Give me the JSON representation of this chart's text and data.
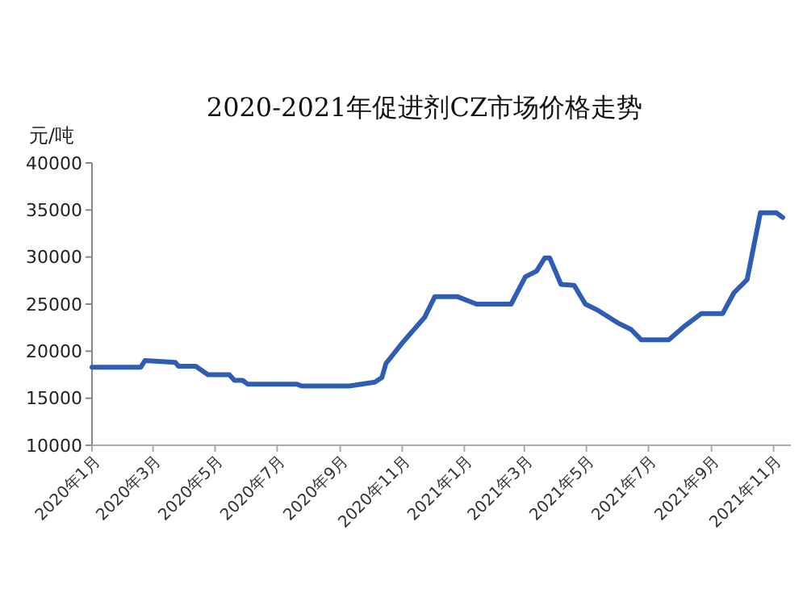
{
  "chart_data": {
    "type": "line",
    "title": "2020-2021年促进剂CZ市场价格走势",
    "ylabel": "元/吨",
    "x": [
      "2020-01-01",
      "2020-02-18",
      "2020-02-22",
      "2020-03-23",
      "2020-03-26",
      "2020-04-12",
      "2020-04-24",
      "2020-05-15",
      "2020-05-20",
      "2020-05-28",
      "2020-06-02",
      "2020-07-20",
      "2020-07-25",
      "2020-09-10",
      "2020-10-05",
      "2020-10-12",
      "2020-10-16",
      "2020-11-02",
      "2020-11-23",
      "2020-12-03",
      "2020-12-25",
      "2021-01-13",
      "2021-02-16",
      "2021-03-02",
      "2021-03-13",
      "2021-03-21",
      "2021-03-26",
      "2021-04-06",
      "2021-04-19",
      "2021-04-30",
      "2021-05-13",
      "2021-06-01",
      "2021-06-14",
      "2021-06-24",
      "2021-07-21",
      "2021-08-06",
      "2021-08-22",
      "2021-09-12",
      "2021-09-23",
      "2021-10-06",
      "2021-10-19",
      "2021-11-04",
      "2021-11-10"
    ],
    "series": [
      {
        "color": "#2f5db3",
        "values": [
          18300,
          18300,
          19000,
          18800,
          18400,
          18400,
          17500,
          17500,
          16900,
          16900,
          16500,
          16500,
          16300,
          16300,
          16700,
          17200,
          18700,
          21000,
          23600,
          25800,
          25800,
          25000,
          25000,
          27900,
          28500,
          29900,
          29900,
          27100,
          27000,
          25000,
          24300,
          23000,
          22300,
          21200,
          21200,
          22700,
          24000,
          24000,
          26200,
          27600,
          34700,
          34700,
          34200
        ]
      }
    ],
    "xlim": [
      "2020-01-01",
      "2021-11-18"
    ],
    "xticks": [
      {
        "value": "2020-01-01",
        "label": "2020年1月"
      },
      {
        "value": "2020-03-01",
        "label": "2020年3月"
      },
      {
        "value": "2020-05-01",
        "label": "2020年5月"
      },
      {
        "value": "2020-07-01",
        "label": "2020年7月"
      },
      {
        "value": "2020-09-01",
        "label": "2020年9月"
      },
      {
        "value": "2020-11-01",
        "label": "2020年11月"
      },
      {
        "value": "2021-01-01",
        "label": "2021年1月"
      },
      {
        "value": "2021-03-01",
        "label": "2021年3月"
      },
      {
        "value": "2021-05-01",
        "label": "2021年5月"
      },
      {
        "value": "2021-07-01",
        "label": "2021年7月"
      },
      {
        "value": "2021-09-01",
        "label": "2021年9月"
      },
      {
        "value": "2021-11-01",
        "label": "2021年11月"
      }
    ],
    "ylim": [
      10000,
      40000
    ],
    "yticks": [
      10000,
      15000,
      20000,
      25000,
      30000,
      35000,
      40000
    ],
    "grid": false,
    "line_style": "solid"
  }
}
